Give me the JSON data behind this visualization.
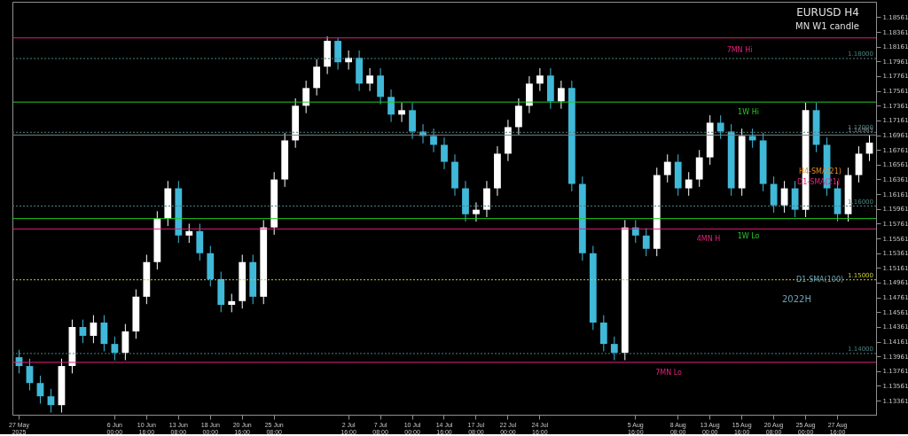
{
  "chart_data": {
    "type": "candlestick",
    "title": "EURUSD H4",
    "subtitle": "MN W1 candle",
    "categories": [
      "27 May 2025",
      null,
      null,
      null,
      null,
      null,
      null,
      null,
      null,
      "6 Jun 00:00",
      null,
      null,
      "10 Jun 16:00",
      null,
      null,
      "13 Jun 08:00",
      null,
      null,
      "18 Jun 00:00",
      null,
      null,
      "20 Jun 16:00",
      null,
      null,
      "25 Jun 08:00",
      null,
      null,
      null,
      null,
      null,
      null,
      "2 Jul 16:00",
      null,
      null,
      "7 Jul 08:00",
      null,
      null,
      "10 Jul 00:00",
      null,
      null,
      "14 Jul 16:00",
      null,
      null,
      "17 Jul 08:00",
      null,
      null,
      "22 Jul 00:00",
      null,
      null,
      "24 Jul 16:00",
      null,
      null,
      null,
      null,
      null,
      null,
      null,
      null,
      "5 Aug 16:00",
      null,
      null,
      null,
      "8 Aug 08:00",
      null,
      null,
      "13 Aug 00:00",
      null,
      null,
      "15 Aug 16:00",
      null,
      null,
      "20 Aug 08:00",
      null,
      null,
      "25 Aug 00:00",
      null,
      null,
      "27 Aug 16:00",
      null,
      null,
      null
    ],
    "ohlc": [
      [
        1.1395,
        1.1405,
        1.1373,
        1.1383
      ],
      [
        1.1383,
        1.1393,
        1.135,
        1.136
      ],
      [
        1.136,
        1.137,
        1.1332,
        1.1342
      ],
      [
        1.1342,
        1.1352,
        1.132,
        1.133
      ],
      [
        1.133,
        1.1393,
        1.132,
        1.1383
      ],
      [
        1.1383,
        1.1446,
        1.1373,
        1.1436
      ],
      [
        1.1436,
        1.1446,
        1.1414,
        1.1424
      ],
      [
        1.1424,
        1.1452,
        1.1414,
        1.1442
      ],
      [
        1.1442,
        1.1452,
        1.1403,
        1.1413
      ],
      [
        1.1413,
        1.1423,
        1.1391,
        1.1401
      ],
      [
        1.1401,
        1.144,
        1.1391,
        1.143
      ],
      [
        1.143,
        1.1487,
        1.142,
        1.1477
      ],
      [
        1.1477,
        1.1534,
        1.1467,
        1.1524
      ],
      [
        1.1524,
        1.1593,
        1.1514,
        1.1583
      ],
      [
        1.1583,
        1.1634,
        1.1573,
        1.1624
      ],
      [
        1.1624,
        1.1634,
        1.155,
        1.156
      ],
      [
        1.156,
        1.1576,
        1.155,
        1.1566
      ],
      [
        1.1566,
        1.1576,
        1.1526,
        1.1536
      ],
      [
        1.1536,
        1.1546,
        1.1491,
        1.1501
      ],
      [
        1.1501,
        1.1511,
        1.1456,
        1.1466
      ],
      [
        1.1466,
        1.1481,
        1.1456,
        1.1471
      ],
      [
        1.1471,
        1.1534,
        1.1461,
        1.1524
      ],
      [
        1.1524,
        1.1534,
        1.1467,
        1.1477
      ],
      [
        1.1477,
        1.1581,
        1.1467,
        1.1571
      ],
      [
        1.1571,
        1.1646,
        1.1561,
        1.1636
      ],
      [
        1.1636,
        1.1699,
        1.1626,
        1.1689
      ],
      [
        1.1689,
        1.1746,
        1.1679,
        1.1736
      ],
      [
        1.1736,
        1.177,
        1.1726,
        1.176
      ],
      [
        1.176,
        1.1799,
        1.175,
        1.1789
      ],
      [
        1.1789,
        1.183,
        1.1779,
        1.1824
      ],
      [
        1.1824,
        1.1828,
        1.1785,
        1.1795
      ],
      [
        1.1795,
        1.1811,
        1.1785,
        1.1801
      ],
      [
        1.1801,
        1.1811,
        1.1756,
        1.1766
      ],
      [
        1.1766,
        1.1787,
        1.1756,
        1.1777
      ],
      [
        1.1777,
        1.1787,
        1.1738,
        1.1748
      ],
      [
        1.1748,
        1.1758,
        1.1714,
        1.1724
      ],
      [
        1.1724,
        1.174,
        1.1714,
        1.173
      ],
      [
        1.173,
        1.174,
        1.1691,
        1.1701
      ],
      [
        1.1701,
        1.1711,
        1.1685,
        1.1695
      ],
      [
        1.1695,
        1.1705,
        1.1673,
        1.1683
      ],
      [
        1.1683,
        1.1693,
        1.165,
        1.166
      ],
      [
        1.166,
        1.167,
        1.1614,
        1.1624
      ],
      [
        1.1624,
        1.1634,
        1.1579,
        1.1589
      ],
      [
        1.1589,
        1.1605,
        1.1579,
        1.1595
      ],
      [
        1.1595,
        1.1634,
        1.1585,
        1.1624
      ],
      [
        1.1624,
        1.1681,
        1.1614,
        1.1671
      ],
      [
        1.1671,
        1.1717,
        1.1661,
        1.1707
      ],
      [
        1.1707,
        1.1746,
        1.1697,
        1.1736
      ],
      [
        1.1736,
        1.1776,
        1.1726,
        1.1766
      ],
      [
        1.1766,
        1.1787,
        1.1756,
        1.1777
      ],
      [
        1.1777,
        1.1787,
        1.1732,
        1.1742
      ],
      [
        1.1742,
        1.177,
        1.1732,
        1.176
      ],
      [
        1.176,
        1.177,
        1.162,
        1.163
      ],
      [
        1.163,
        1.164,
        1.1526,
        1.1536
      ],
      [
        1.1536,
        1.1546,
        1.1432,
        1.1442
      ],
      [
        1.1442,
        1.1452,
        1.1403,
        1.1413
      ],
      [
        1.1413,
        1.1423,
        1.1391,
        1.1401
      ],
      [
        1.1401,
        1.1581,
        1.1391,
        1.1571
      ],
      [
        1.1571,
        1.1581,
        1.155,
        1.156
      ],
      [
        1.156,
        1.157,
        1.1532,
        1.1542
      ],
      [
        1.1542,
        1.1652,
        1.1532,
        1.1642
      ],
      [
        1.1642,
        1.167,
        1.1632,
        1.166
      ],
      [
        1.166,
        1.167,
        1.1614,
        1.1624
      ],
      [
        1.1624,
        1.1646,
        1.1614,
        1.1636
      ],
      [
        1.1636,
        1.1676,
        1.1626,
        1.1666
      ],
      [
        1.1666,
        1.1723,
        1.1656,
        1.1713
      ],
      [
        1.1713,
        1.1723,
        1.1691,
        1.1701
      ],
      [
        1.1701,
        1.1711,
        1.1614,
        1.1624
      ],
      [
        1.1624,
        1.1705,
        1.1614,
        1.1695
      ],
      [
        1.1695,
        1.1705,
        1.1679,
        1.1689
      ],
      [
        1.1689,
        1.1699,
        1.162,
        1.163
      ],
      [
        1.163,
        1.164,
        1.1591,
        1.1601
      ],
      [
        1.1601,
        1.1634,
        1.1591,
        1.1624
      ],
      [
        1.1624,
        1.1634,
        1.1585,
        1.1595
      ],
      [
        1.1595,
        1.174,
        1.1585,
        1.173
      ],
      [
        1.173,
        1.174,
        1.1673,
        1.1683
      ],
      [
        1.1683,
        1.1693,
        1.1614,
        1.1624
      ],
      [
        1.1624,
        1.1634,
        1.1579,
        1.1589
      ],
      [
        1.1589,
        1.1652,
        1.1579,
        1.1642
      ],
      [
        1.1642,
        1.1681,
        1.1632,
        1.1671
      ],
      [
        1.1671,
        1.1696,
        1.1661,
        1.1686
      ]
    ],
    "colors": [
      "#40b8d8",
      "#40b8d8",
      "#40b8d8",
      "#40b8d8",
      "#ffffff",
      "#ffffff",
      "#40b8d8",
      "#ffffff",
      "#40b8d8",
      "#40b8d8",
      "#ffffff",
      "#ffffff",
      "#ffffff",
      "#ffffff",
      "#ffffff",
      "#40b8d8",
      "#ffffff",
      "#40b8d8",
      "#40b8d8",
      "#40b8d8",
      "#ffffff",
      "#ffffff",
      "#40b8d8",
      "#ffffff",
      "#ffffff",
      "#ffffff",
      "#ffffff",
      "#ffffff",
      "#ffffff",
      "#ffffff",
      "#40b8d8",
      "#ffffff",
      "#40b8d8",
      "#ffffff",
      "#40b8d8",
      "#40b8d8",
      "#ffffff",
      "#40b8d8",
      "#40b8d8",
      "#40b8d8",
      "#40b8d8",
      "#40b8d8",
      "#40b8d8",
      "#ffffff",
      "#ffffff",
      "#ffffff",
      "#ffffff",
      "#ffffff",
      "#ffffff",
      "#ffffff",
      "#40b8d8",
      "#ffffff",
      "#40b8d8",
      "#40b8d8",
      "#40b8d8",
      "#40b8d8",
      "#40b8d8",
      "#ffffff",
      "#40b8d8",
      "#40b8d8",
      "#ffffff",
      "#ffffff",
      "#40b8d8",
      "#ffffff",
      "#ffffff",
      "#ffffff",
      "#40b8d8",
      "#40b8d8",
      "#ffffff",
      "#40b8d8",
      "#40b8d8",
      "#40b8d8",
      "#ffffff",
      "#40b8d8",
      "#ffffff",
      "#40b8d8",
      "#40b8d8",
      "#40b8d8",
      "#ffffff",
      "#ffffff",
      "#ffffff"
    ],
    "ylim": [
      1.1317,
      1.1877
    ],
    "yticks": [
      1.13361,
      1.13561,
      1.13761,
      1.13961,
      1.14161,
      1.14361,
      1.14561,
      1.14761,
      1.14961,
      1.15161,
      1.15361,
      1.15561,
      1.15761,
      1.15961,
      1.16161,
      1.16361,
      1.16561,
      1.16761,
      1.16961,
      1.17161,
      1.17361,
      1.17561,
      1.17761,
      1.17961,
      1.18161,
      1.18361,
      1.18561
    ],
    "ref_lines": [
      {
        "axis": "y",
        "value": 1.18,
        "label": "1.18000",
        "color": "#4a8080",
        "line_style": "dotted"
      },
      {
        "axis": "y",
        "value": 1.17,
        "label": "1.17000",
        "color": "#4a8080",
        "line_style": "dotted"
      },
      {
        "axis": "y",
        "value": 1.16963,
        "label": "1.16963",
        "color": "#808080",
        "line_style": "solid"
      },
      {
        "axis": "y",
        "value": 1.16,
        "label": "1.16000",
        "color": "#4a8080",
        "line_style": "dotted"
      },
      {
        "axis": "y",
        "value": 1.15,
        "label": "1.15000",
        "color": "#c8c832",
        "line_style": "dotted"
      },
      {
        "axis": "y",
        "value": 1.14,
        "label": "1.14000",
        "color": "#4a8080",
        "line_style": "dotted"
      },
      {
        "axis": "y",
        "value": 1.1828,
        "label": "7MN Hi",
        "color": "#e0207a",
        "line_style": "solid"
      },
      {
        "axis": "y",
        "value": 1.1388,
        "label": "7MN Lo",
        "color": "#e0207a",
        "line_style": "solid"
      },
      {
        "axis": "y",
        "value": 1.1569,
        "label": "4MN H",
        "color": "#e0207a",
        "line_style": "solid"
      },
      {
        "axis": "y",
        "value": 1.1741,
        "label": "1W Hi",
        "color": "#22cc22",
        "line_style": "solid"
      },
      {
        "axis": "y",
        "value": 1.1583,
        "label": "1W Lo",
        "color": "#22cc22",
        "line_style": "solid"
      }
    ],
    "annotations": [
      "H4-SMA(21)",
      "D1-SMA(21)",
      "D1-SMA(100)",
      "2022H"
    ]
  }
}
